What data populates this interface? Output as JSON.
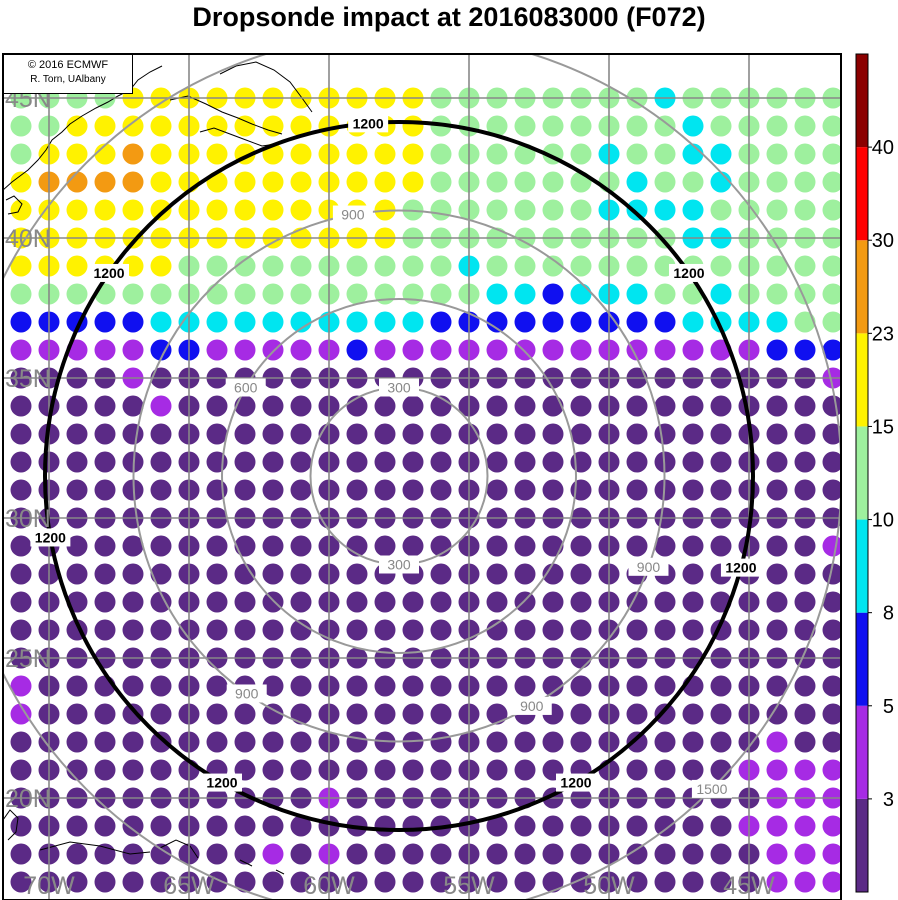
{
  "title": "Dropsonde impact at 2016083000 (F072)",
  "credit": {
    "line1": "© 2016 ECMWF",
    "line2": "R. Torn, UAlbany"
  },
  "map": {
    "lon_range": [
      -72,
      -43
    ],
    "lat_range": [
      18,
      46
    ],
    "lon_grid": [
      -70,
      -65,
      -60,
      -55,
      -50,
      -45
    ],
    "lat_grid": [
      20,
      25,
      30,
      35,
      40,
      45
    ],
    "lon_labels": [
      "70W",
      "65W",
      "60W",
      "55W",
      "50W",
      "45W"
    ],
    "lat_labels": [
      "20N",
      "25N",
      "30N",
      "35N",
      "40N",
      "45N"
    ],
    "center": {
      "lon": -57.5,
      "lat": 31.5
    },
    "dot_rows": [
      "AAAAAAMMMMMMMMMMMMMMMMMMMMMMMMM",
      "AAAAAAMMMMMMMMMMMMMMMMMMMMMMMMM",
      "AAAAAAMMMMMMMMMMMMMMMMMMMMMMMMM",
      "AAAAAAMMMMMMMMMMMMMMMMMMMMMMMMM",
      "AAAAAAMMMMMMMMMMMMMMMMMMMMMMMMM",
      "AAAAAAMMMMMMMMMMMMMMMMMMMMMMMMM",
      "AAAAAAMMMMMMMMMMMMMMMMMMMMMMMMM",
      "AAAAAAMMMMMMMMMMMMMMMMMMMMMMMMM",
      "AAAAAAMMMMMMMMMMMMMMMMMMMMMMMMM",
      "AAAAAAMMMMMMMMMMMMMMMMMMMMMMMMM",
      "AAAAAAMMMMMMMMMMMMMMMMMMMMMMMMM",
      "AAAAAAMMMMMMMMMMMMMMMMMMMMMMMMM",
      "AAAAAAMMMMMMMMMMMMMMMMMMMMMMMMM",
      "AAAAAAMMMMMMMMMMMMMMMMMMMMMMMMM",
      "AAAAAAMMMMMMMMMMMMMMMMMMMMMMMMM",
      "AAAAAAMMMMMMMMMMMMMMMMMMMMMMMMM",
      "AAAAAAMMMMMMMMMMMMMMMMMMMMMMMMM",
      "AAAAAAMMMMMMMMMMMMMMMMMMMMMMMMM",
      "AAAAAAMMMMMMMMMMMMMMMMMMMMMMMMM",
      "AAAAAAMMMMMMMMMMMMMMMMMMMMMMMMM",
      "AAAAAAMMMMMMMMMMMMMMMMMMMMMMMMM",
      "AAAAAAMMMMMMMMMMMMMMMMMMMMMMMMM",
      "AAAAAAMMMMMMMMMMMMMMMMMMMMMMMMM",
      "AAAAAAMMMMMMMMMMMMMMMMMMMMMMMMM",
      "AAAAAAMMMMMMMMMMMMMMMMMMMMMMMMM",
      "AAAAAAMMMMMMMMMMMMMMMMMMMMMMMMM",
      "AAAAAAMMMMMMMMMMMMMMMMMMMMMMMMM",
      "AAAAAAMMMMMMMMMMMMMMMMMMMMMMMMM",
      "AAAAAAMMMMMMMMMMMMMMMMMMMMMMMMM",
      "AAAAAAMMMMMMMMMMMMMMMMMMMMMMMMM"
    ],
    "dot_codes": {
      "A": "aux",
      "M": "main"
    }
  },
  "impact_grid": {
    "lon_start": -71.0,
    "lon_step": 1.0,
    "lat_start": 45.0,
    "lat_step": -1.0,
    "rows": [
      "GGGGYYYYYYYYYYYGGGGGGGGCGGGGGGG",
      "GGYYYYYYYYYYYYYGGGGGGGGGCGGGGGG",
      "GYYYOYYYYYYYYYYGGGGGGCGGCCGGGGG",
      "YOOOOYYYYYYYYYYGGGGGGGCGGCGGGGG",
      "YYYYYYYYYYYYYYGGGGGGGCCCCGGGGGG",
      "YYYYYYYYYYYYYYGGGGGGGGGGCCGGGGG",
      "YYYYYYGGGGGGGGGGCGGGGGGGGGGGGGG",
      "GGGGGGGGGGGGGGGGGCCBCCCGGCGGGGG",
      "BBBBBCCCCCCCCCCBBBBBBBBBCCCCGGG",
      "PPPPPBBPPPPPBPPPPPPPPPPPPPPBBBBB",
      "DDDDPDDDDDDDDDDDDDDDDDDDDDDDDPP",
      "DDDDDPDDDDDDDDDDDDDDDDDDDDDDDDP",
      "DDDDDDDDDDDDDDDDDDDDDDDDDDDDDDD",
      "DDDDDDDDDDDDDDDDDDDDDDDDDDDDDDD",
      "DDDDDDDDDDDDDDDDDDDDDDDDDDDDDDP",
      "DDDDDDDDDDDDDDDDDDDDDDDDDDDDDDP",
      "DDDDDDDDDDDDDDDDDDDDDDDDDDDDDPP",
      "DDDDDDDDDDDDDDDDDDDDDDDDDDDDDDD",
      "DDDDDDDDDDDDDDDDDDDDDDDDDDDDDDD",
      "DDDDDDDDDDDDDDDDDDDDDDDDDDDDDDD",
      "DDDDDDDDDDDDDDDDDDDDDDDDDDDDDDD",
      "PDDDDDDDDDDDDDDDDDDDDDDDDDDDDDD",
      "PDDDDDDDDDDDDDDDDDDDDDDDDDDDDDD",
      "DDDDDDDDDDDDDDDDDDDDDDDDDDDPDDD",
      "DDDDDDDDDDDDDDDDDDDDDDDDDDPPPPPP",
      "DDDDDDDDDDDPDDDDDDDDDDDDDDDPPPPP",
      "DDDDDDDDDDDDDDDDDDDDDDDDDDPPPPPP",
      "DDDDDDDDDPDPDDDDDDDDDDDDDDDPPPPP",
      "DDDDDDDDDDDDDDDDDDDDDDDDDDDPPPPP",
      "DDDDDDDDDDDDDDDDDDDDDDDDDDDDPPPP"
    ],
    "codes": {
      "D": "#5b2a86",
      "P": "#a62be4",
      "B": "#1010f0",
      "C": "#00e5f0",
      "G": "#9ef09e",
      "Y": "#fff200",
      "O": "#f39a12"
    }
  },
  "range_rings": [
    {
      "radius_km": 300,
      "label": "300",
      "color": "#999999",
      "width": 2
    },
    {
      "radius_km": 600,
      "label": "600",
      "color": "#999999",
      "width": 2
    },
    {
      "radius_km": 900,
      "label": "900",
      "color": "#999999",
      "width": 2
    },
    {
      "radius_km": 1200,
      "label": "1200",
      "color": "#000000",
      "width": 4
    },
    {
      "radius_km": 1500,
      "label": "1500",
      "color": "#999999",
      "width": 2
    }
  ],
  "colorbar": {
    "bins": [
      {
        "color": "#5b2a86"
      },
      {
        "color": "#a62be4"
      },
      {
        "color": "#1010f0"
      },
      {
        "color": "#00e5f0"
      },
      {
        "color": "#9ef09e"
      },
      {
        "color": "#fff200"
      },
      {
        "color": "#f39a12"
      },
      {
        "color": "#ff0000"
      },
      {
        "color": "#8b0000"
      }
    ],
    "labels": [
      "3",
      "5",
      "8",
      "10",
      "15",
      "23",
      "30",
      "40"
    ]
  }
}
